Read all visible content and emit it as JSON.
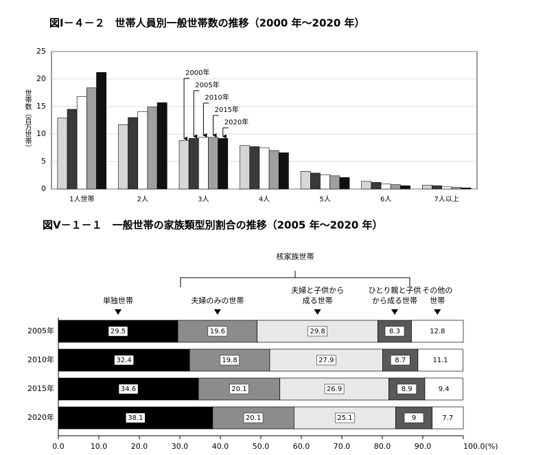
{
  "chart_data": [
    {
      "type": "bar",
      "title": "図Ⅰ－４－２　世帯人員別一般世帯数の推移（2000 年～2020 年）",
      "y_label": "世帯数（百万世帯）",
      "categories": [
        "1人世帯",
        "2人",
        "3人",
        "4人",
        "5人",
        "6人",
        "7人以上"
      ],
      "series": [
        {
          "name": "2000年",
          "color": "#d6d6d6",
          "values": [
            12.9,
            11.7,
            8.8,
            7.9,
            3.2,
            1.4,
            0.7
          ]
        },
        {
          "name": "2005年",
          "color": "#3a3a3a",
          "values": [
            14.5,
            13.0,
            9.2,
            7.7,
            2.9,
            1.2,
            0.6
          ]
        },
        {
          "name": "2010年",
          "color": "#ffffff",
          "values": [
            16.8,
            14.1,
            9.4,
            7.5,
            2.6,
            0.9,
            0.4
          ]
        },
        {
          "name": "2015年",
          "color": "#a0a0a0",
          "values": [
            18.4,
            14.9,
            9.4,
            7.0,
            2.4,
            0.8,
            0.3
          ]
        },
        {
          "name": "2020年",
          "color": "#111111",
          "values": [
            21.2,
            15.7,
            9.2,
            6.6,
            2.1,
            0.6,
            0.2
          ]
        }
      ],
      "ylim": [
        0,
        25
      ],
      "yticks": [
        0,
        5,
        10,
        15,
        20,
        25
      ],
      "grid": true
    },
    {
      "type": "stacked-barh",
      "title": "図Ⅴ－１－１　一般世帯の家族類型別割合の推移（2005 年～2020 年）",
      "annotation": "核家族世帯",
      "categories": [
        "2005年",
        "2010年",
        "2015年",
        "2020年"
      ],
      "series": [
        {
          "name": "単独世帯",
          "color": "#000000",
          "values": [
            29.5,
            32.4,
            34.6,
            38.1
          ]
        },
        {
          "name": "夫婦のみの世帯",
          "color": "#8c8c8c",
          "values": [
            19.6,
            19.8,
            20.1,
            20.1
          ]
        },
        {
          "name": "夫婦と子供から\n成る世帯",
          "color": "#e8e8e8",
          "values": [
            29.8,
            27.9,
            26.9,
            25.1
          ]
        },
        {
          "name": "ひとり親と子供\nから成る世帯",
          "color": "#595959",
          "values": [
            8.3,
            8.7,
            8.9,
            9.0
          ]
        },
        {
          "name": "その他の\n世帯",
          "color": "#ffffff",
          "values": [
            12.8,
            11.1,
            9.4,
            7.7
          ]
        }
      ],
      "xlim": [
        0,
        100
      ],
      "xticks": [
        {
          "value": 0,
          "label": "0.0"
        },
        {
          "value": 10,
          "label": "10.0"
        },
        {
          "value": 20,
          "label": "20.0"
        },
        {
          "value": 30,
          "label": "30.0"
        },
        {
          "value": 40,
          "label": "40.0"
        },
        {
          "value": 50,
          "label": "50.0"
        },
        {
          "value": 60,
          "label": "60.0"
        },
        {
          "value": 70,
          "label": "70.0"
        },
        {
          "value": 80,
          "label": "80.0"
        },
        {
          "value": 90,
          "label": "90.0"
        },
        {
          "value": 100,
          "label": "100.0(%)"
        }
      ]
    }
  ]
}
